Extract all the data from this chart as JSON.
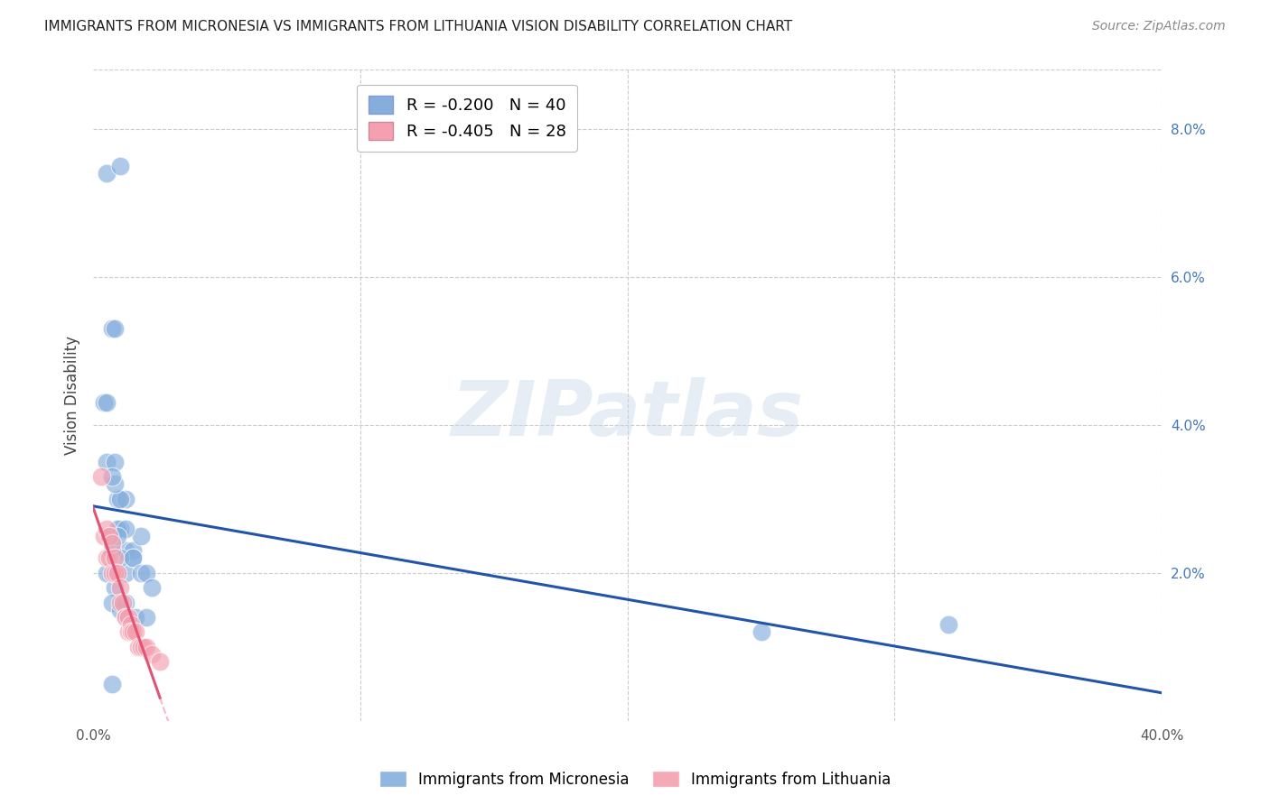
{
  "title": "IMMIGRANTS FROM MICRONESIA VS IMMIGRANTS FROM LITHUANIA VISION DISABILITY CORRELATION CHART",
  "source": "Source: ZipAtlas.com",
  "ylabel": "Vision Disability",
  "xlim": [
    0.0,
    0.4
  ],
  "ylim": [
    0.0,
    0.088
  ],
  "blue_color": "#85AEDD",
  "pink_color": "#F4A0B0",
  "blue_line_color": "#2255AA",
  "pink_line_color": "#E05575",
  "blue_R": "-0.200",
  "blue_N": "40",
  "pink_R": "-0.405",
  "pink_N": "28",
  "legend_label_blue": "Immigrants from Micronesia",
  "legend_label_pink": "Immigrants from Lithuania",
  "watermark": "ZIPatlas",
  "background_color": "#ffffff",
  "grid_color": "#cccccc",
  "micronesia_x": [
    0.005,
    0.01,
    0.007,
    0.008,
    0.004,
    0.005,
    0.005,
    0.008,
    0.009,
    0.012,
    0.01,
    0.006,
    0.007,
    0.01,
    0.012,
    0.015,
    0.018,
    0.012,
    0.015,
    0.01,
    0.008,
    0.007,
    0.009,
    0.012,
    0.015,
    0.018,
    0.02,
    0.022,
    0.005,
    0.008,
    0.007,
    0.01,
    0.012,
    0.016,
    0.02,
    0.007,
    0.009,
    0.25,
    0.32,
    0.007
  ],
  "micronesia_y": [
    0.074,
    0.075,
    0.053,
    0.053,
    0.043,
    0.043,
    0.035,
    0.035,
    0.03,
    0.03,
    0.03,
    0.025,
    0.025,
    0.026,
    0.023,
    0.023,
    0.025,
    0.02,
    0.022,
    0.022,
    0.032,
    0.033,
    0.026,
    0.026,
    0.022,
    0.02,
    0.02,
    0.018,
    0.02,
    0.018,
    0.016,
    0.015,
    0.016,
    0.014,
    0.014,
    0.023,
    0.025,
    0.012,
    0.013,
    0.005
  ],
  "lithuania_x": [
    0.003,
    0.004,
    0.005,
    0.005,
    0.006,
    0.006,
    0.007,
    0.007,
    0.008,
    0.008,
    0.009,
    0.01,
    0.01,
    0.011,
    0.012,
    0.012,
    0.013,
    0.013,
    0.014,
    0.014,
    0.015,
    0.016,
    0.017,
    0.018,
    0.019,
    0.02,
    0.022,
    0.025
  ],
  "lithuania_y": [
    0.033,
    0.025,
    0.026,
    0.022,
    0.025,
    0.022,
    0.024,
    0.02,
    0.022,
    0.02,
    0.02,
    0.018,
    0.016,
    0.016,
    0.014,
    0.014,
    0.014,
    0.012,
    0.013,
    0.012,
    0.012,
    0.012,
    0.01,
    0.01,
    0.01,
    0.01,
    0.009,
    0.008
  ]
}
